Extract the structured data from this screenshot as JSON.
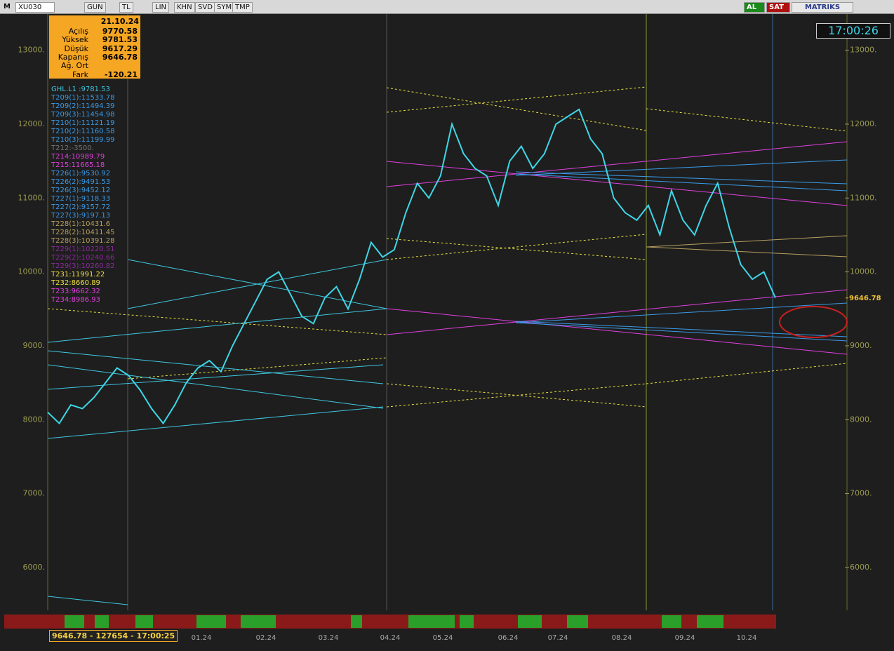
{
  "toolbar": {
    "logo": "M",
    "symbol": "XU030",
    "buttons": [
      "GUN",
      "TL",
      "LIN",
      "KHN",
      "SVD",
      "SYM",
      "TMP"
    ],
    "buy": "AL",
    "sell": "SAT",
    "brand": "MATRIKS"
  },
  "clock": "17:00:26",
  "info_box": {
    "date": "21.10.24",
    "rows": [
      {
        "label": "Açılış",
        "value": 9770.58
      },
      {
        "label": "Yüksek",
        "value": 9781.53
      },
      {
        "label": "Düşük",
        "value": 9617.29
      },
      {
        "label": "Kapanış",
        "value": 9646.78
      },
      {
        "label": "Ağ. Ort"
      },
      {
        "label": "Fark",
        "value": -120.21
      }
    ]
  },
  "indicators": [
    {
      "text": "GHL.L1      :9781.53",
      "color": "#3ec8e0"
    },
    {
      "text": "T209(1):11533.78",
      "color": "#3a9be8"
    },
    {
      "text": "T209(2):11494.39",
      "color": "#3a9be8"
    },
    {
      "text": "T209(3):11454.98",
      "color": "#3a9be8"
    },
    {
      "text": "T210(1):11121.19",
      "color": "#3a9be8"
    },
    {
      "text": "T210(2):11160.58",
      "color": "#3a9be8"
    },
    {
      "text": "T210(3):11199.99",
      "color": "#3a9be8"
    },
    {
      "text": "T212:-3500.",
      "color": "#777777"
    },
    {
      "text": "T214:10989.79",
      "color": "#e040e0"
    },
    {
      "text": "T215:11665.18",
      "color": "#e040e0"
    },
    {
      "text": "T226(1):9530.92",
      "color": "#3a9be8"
    },
    {
      "text": "T226(2):9491.53",
      "color": "#3a9be8"
    },
    {
      "text": "T226(3):9452.12",
      "color": "#3a9be8"
    },
    {
      "text": "T227(1):9118.33",
      "color": "#3a9be8"
    },
    {
      "text": "T227(2):9157.72",
      "color": "#3a9be8"
    },
    {
      "text": "T227(3):9197.13",
      "color": "#3a9be8"
    },
    {
      "text": "T228(1):10431.6",
      "color": "#b8a060"
    },
    {
      "text": "T228(2):10411.45",
      "color": "#b8a060"
    },
    {
      "text": "T228(3):10391.28",
      "color": "#b8a060"
    },
    {
      "text": "T229(1):10220.51",
      "color": "#8a2a9a"
    },
    {
      "text": "T229(2):10240.66",
      "color": "#8a2a9a"
    },
    {
      "text": "T229(3):10260.82",
      "color": "#8a2a9a"
    },
    {
      "text": "T231:11991.22",
      "color": "#f0e040"
    },
    {
      "text": "T232:8660.89",
      "color": "#f0e040"
    },
    {
      "text": "T233:9662.32",
      "color": "#e040e0"
    },
    {
      "text": "T234:8986.93",
      "color": "#e040e0"
    }
  ],
  "chart_data": {
    "type": "line",
    "color": "#3ed6e6",
    "ylim": [
      5420,
      13490
    ],
    "yticks": [
      {
        "value": 13000,
        "label": "13000."
      },
      {
        "value": 12000,
        "label": "12000."
      },
      {
        "value": 11000,
        "label": "11000."
      },
      {
        "value": 10000,
        "label": "10000."
      },
      {
        "value": 9000,
        "label": "9000."
      },
      {
        "value": 8000,
        "label": "8000."
      },
      {
        "value": 7000,
        "label": "7000."
      },
      {
        "value": 6000,
        "label": "6000."
      }
    ],
    "x_labels": [
      "01.24",
      "02.24",
      "03.24",
      "04.24",
      "05.24",
      "06.24",
      "07.24",
      "08.24",
      "09.24",
      "10.24"
    ],
    "values": [
      8100,
      7950,
      8200,
      8150,
      8300,
      8500,
      8700,
      8600,
      8400,
      8150,
      7950,
      8200,
      8500,
      8700,
      8800,
      8650,
      9000,
      9300,
      9600,
      9900,
      10000,
      9700,
      9400,
      9300,
      9650,
      9800,
      9500,
      9900,
      10400,
      10200,
      10300,
      10800,
      11200,
      11000,
      11300,
      12000,
      11600,
      11400,
      11300,
      10900,
      11500,
      11700,
      11400,
      11600,
      12000,
      12100,
      12200,
      11800,
      11600,
      11000,
      10800,
      10700,
      10900,
      10500,
      11100,
      10700,
      10500,
      10900,
      11200,
      10600,
      10100,
      9900,
      10000,
      9650
    ],
    "last_price": 9646.78
  },
  "status": "9646.78 - 127654 - 17:00:25"
}
